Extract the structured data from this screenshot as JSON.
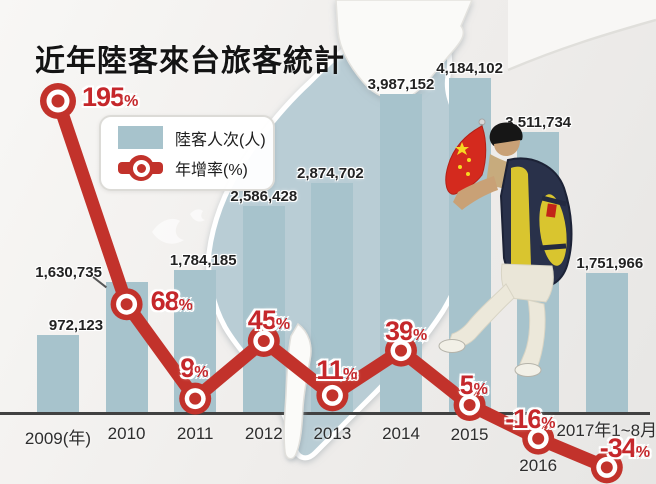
{
  "title": "近年陸客來台旅客統計",
  "legend": {
    "bar_label": "陸客人次(人)",
    "line_label": "年增率(%)"
  },
  "colors": {
    "bar": "#a7c3cc",
    "line": "#c2322b",
    "pct_text": "#c5272b",
    "value_text": "#222222",
    "axis": "#414141",
    "map": "#b9cdd5"
  },
  "chart_data": {
    "type": "bar+line",
    "title": "近年陸客來台旅客統計",
    "categories": [
      "2009(年)",
      "2010",
      "2011",
      "2012",
      "2013",
      "2014",
      "2015",
      "2016",
      "2017年1~8月"
    ],
    "series": [
      {
        "name": "陸客人次(人)",
        "type": "bar",
        "values": [
          972123,
          1630735,
          1784185,
          2586428,
          2874702,
          3987152,
          4184102,
          3511734,
          1751966
        ],
        "labels": [
          "972,123",
          "1,630,735",
          "1,784,185",
          "2,586,428",
          "2,874,702",
          "3,987,152",
          "4,184,102",
          "3,511,734",
          "1,751,966"
        ]
      },
      {
        "name": "年增率(%)",
        "type": "line",
        "suffix": "%",
        "values": [
          195,
          68,
          9,
          45,
          11,
          39,
          5,
          -16,
          -34
        ],
        "labels": [
          "195",
          "68",
          "9",
          "45",
          "11",
          "39",
          "5",
          "-16",
          "-34"
        ]
      }
    ],
    "ylim_bars": [
      0,
      4184102
    ],
    "baseline_note": "x-axis equals 0% annual growth",
    "legend_position": "upper-left",
    "grid": false
  }
}
